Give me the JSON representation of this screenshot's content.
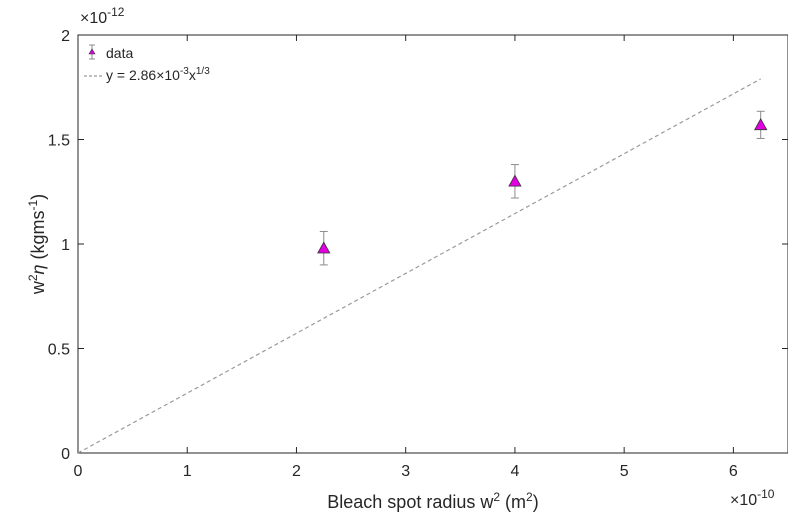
{
  "chart_data": {
    "type": "scatter",
    "xlabel": "Bleach spot radius w",
    "xlabel_sup": "2",
    "xlabel_unit": " (m",
    "xlabel_unit_sup": "2",
    "xlabel_end": ")",
    "ylabel_w": "w",
    "ylabel_w_sup": "2",
    "ylabel_eta": "η",
    "ylabel_unit": " (kgms",
    "ylabel_unit_sup": "-1",
    "ylabel_end": ")",
    "x_exponent_base": "×10",
    "x_exponent": "-10",
    "y_exponent_base": "×10",
    "y_exponent": "-12",
    "xlim": [
      0,
      6.5
    ],
    "ylim": [
      0,
      2
    ],
    "xticks": [
      0,
      1,
      2,
      3,
      4,
      5,
      6
    ],
    "xtick_labels": [
      "0",
      "1",
      "2",
      "3",
      "4",
      "5",
      "6"
    ],
    "yticks": [
      0,
      0.5,
      1,
      1.5,
      2
    ],
    "ytick_labels": [
      "0",
      "0.5",
      "1",
      "1.5",
      "2"
    ],
    "grid": false,
    "legend_position": "top-left",
    "legend": {
      "data_label": "data",
      "fit_label_prefix": "y = 2.86",
      "fit_label_times": "×10",
      "fit_label_exp": "-3",
      "fit_label_x": "x",
      "fit_label_pow": "1/3"
    },
    "series": [
      {
        "name": "data",
        "marker": "triangle",
        "color": "#e000e0",
        "errorbar_color": "#8c8c8c",
        "x": [
          2.25,
          4.0,
          6.25
        ],
        "y": [
          0.98,
          1.3,
          1.57
        ],
        "yerr": [
          0.08,
          0.08,
          0.065
        ]
      },
      {
        "name": "y = 2.86×10-3x1/3",
        "style": "dashed",
        "color": "#9a9a9a",
        "x": [
          0,
          6.25
        ],
        "y": [
          0,
          1.79
        ]
      }
    ]
  }
}
